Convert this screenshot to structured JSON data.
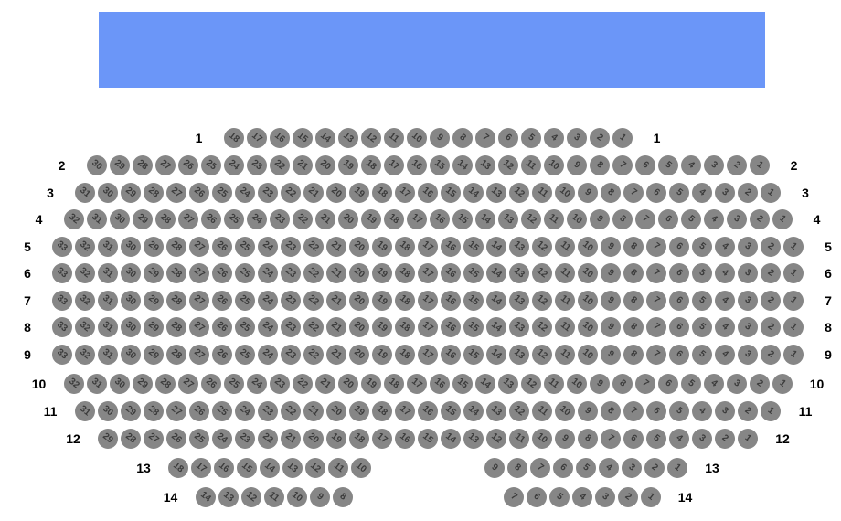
{
  "colors": {
    "stage_fill": "#6b96f8",
    "seat_fill": "#868686",
    "seat_number": "#3b3b3b",
    "row_label": "#000000",
    "background": "#ffffff"
  },
  "stage": {
    "name": "stage"
  },
  "rows": [
    {
      "label": "1",
      "blocks": [
        [
          18,
          17,
          16,
          15,
          14,
          13,
          12,
          11,
          10,
          9,
          8,
          7,
          6,
          5,
          4,
          3,
          2,
          1
        ]
      ]
    },
    {
      "label": "2",
      "blocks": [
        [
          30,
          29,
          28,
          27,
          26,
          25,
          24,
          23,
          22,
          21,
          20,
          19,
          18,
          17,
          16,
          15,
          14,
          13,
          12,
          11,
          10,
          9,
          8,
          7,
          6,
          5,
          4,
          3,
          2,
          1
        ]
      ]
    },
    {
      "label": "3",
      "blocks": [
        [
          31,
          30,
          29,
          28,
          27,
          26,
          25,
          24,
          23,
          22,
          21,
          20,
          19,
          18,
          17,
          16,
          15,
          14,
          13,
          12,
          11,
          10,
          9,
          8,
          7,
          6,
          5,
          4,
          3,
          2,
          1
        ]
      ]
    },
    {
      "label": "4",
      "blocks": [
        [
          32,
          31,
          30,
          29,
          28,
          27,
          26,
          25,
          24,
          23,
          22,
          21,
          20,
          19,
          18,
          17,
          16,
          15,
          14,
          13,
          12,
          11,
          10,
          9,
          8,
          7,
          6,
          5,
          4,
          3,
          2,
          1
        ]
      ]
    },
    {
      "label": "5",
      "blocks": [
        [
          33,
          32,
          31,
          30,
          29,
          28,
          27,
          26,
          25,
          24,
          23,
          22,
          21,
          20,
          19,
          18,
          17,
          16,
          15,
          14,
          13,
          12,
          11,
          10,
          9,
          8,
          7,
          6,
          5,
          4,
          3,
          2,
          1
        ]
      ]
    },
    {
      "label": "6",
      "blocks": [
        [
          33,
          32,
          31,
          30,
          29,
          28,
          27,
          26,
          25,
          24,
          23,
          22,
          21,
          20,
          19,
          18,
          17,
          16,
          15,
          14,
          13,
          12,
          11,
          10,
          9,
          8,
          7,
          6,
          5,
          4,
          3,
          2,
          1
        ]
      ]
    },
    {
      "label": "7",
      "blocks": [
        [
          33,
          32,
          31,
          30,
          29,
          28,
          27,
          26,
          25,
          24,
          23,
          22,
          21,
          20,
          19,
          18,
          17,
          16,
          15,
          14,
          13,
          12,
          11,
          10,
          9,
          8,
          7,
          6,
          5,
          4,
          3,
          2,
          1
        ]
      ]
    },
    {
      "label": "8",
      "blocks": [
        [
          33,
          32,
          31,
          30,
          29,
          28,
          27,
          26,
          25,
          24,
          23,
          22,
          21,
          20,
          19,
          18,
          17,
          16,
          15,
          14,
          13,
          12,
          11,
          10,
          9,
          8,
          7,
          6,
          5,
          4,
          3,
          2,
          1
        ]
      ]
    },
    {
      "label": "9",
      "blocks": [
        [
          33,
          32,
          31,
          30,
          29,
          28,
          27,
          26,
          25,
          24,
          23,
          22,
          21,
          20,
          19,
          18,
          17,
          16,
          15,
          14,
          13,
          12,
          11,
          10,
          9,
          8,
          7,
          6,
          5,
          4,
          3,
          2,
          1
        ]
      ]
    },
    {
      "label": "10",
      "blocks": [
        [
          32,
          31,
          30,
          29,
          28,
          27,
          26,
          25,
          24,
          23,
          22,
          21,
          20,
          19,
          18,
          17,
          16,
          15,
          14,
          13,
          12,
          11,
          10,
          9,
          8,
          7,
          6,
          5,
          4,
          3,
          2,
          1
        ]
      ]
    },
    {
      "label": "11",
      "blocks": [
        [
          31,
          30,
          29,
          28,
          27,
          26,
          25,
          24,
          23,
          22,
          21,
          20,
          19,
          18,
          17,
          16,
          15,
          14,
          13,
          12,
          11,
          10,
          9,
          8,
          7,
          6,
          5,
          4,
          3,
          2,
          1
        ]
      ]
    },
    {
      "label": "12",
      "blocks": [
        [
          29,
          28,
          27,
          26,
          25,
          24,
          23,
          22,
          21,
          20,
          19,
          18,
          17,
          16,
          15,
          14,
          13,
          12,
          11,
          10,
          9,
          8,
          7,
          6,
          5,
          4,
          3,
          2,
          1
        ]
      ]
    },
    {
      "label": "13",
      "blocks": [
        [
          18,
          17,
          16,
          15,
          14,
          13,
          12,
          11,
          10
        ],
        [
          9,
          8,
          7,
          6,
          5,
          4,
          3,
          2,
          1
        ]
      ]
    },
    {
      "label": "14",
      "blocks": [
        [
          14,
          13,
          12,
          11,
          10,
          9,
          8
        ],
        [
          7,
          6,
          5,
          4,
          3,
          2,
          1
        ]
      ]
    }
  ]
}
